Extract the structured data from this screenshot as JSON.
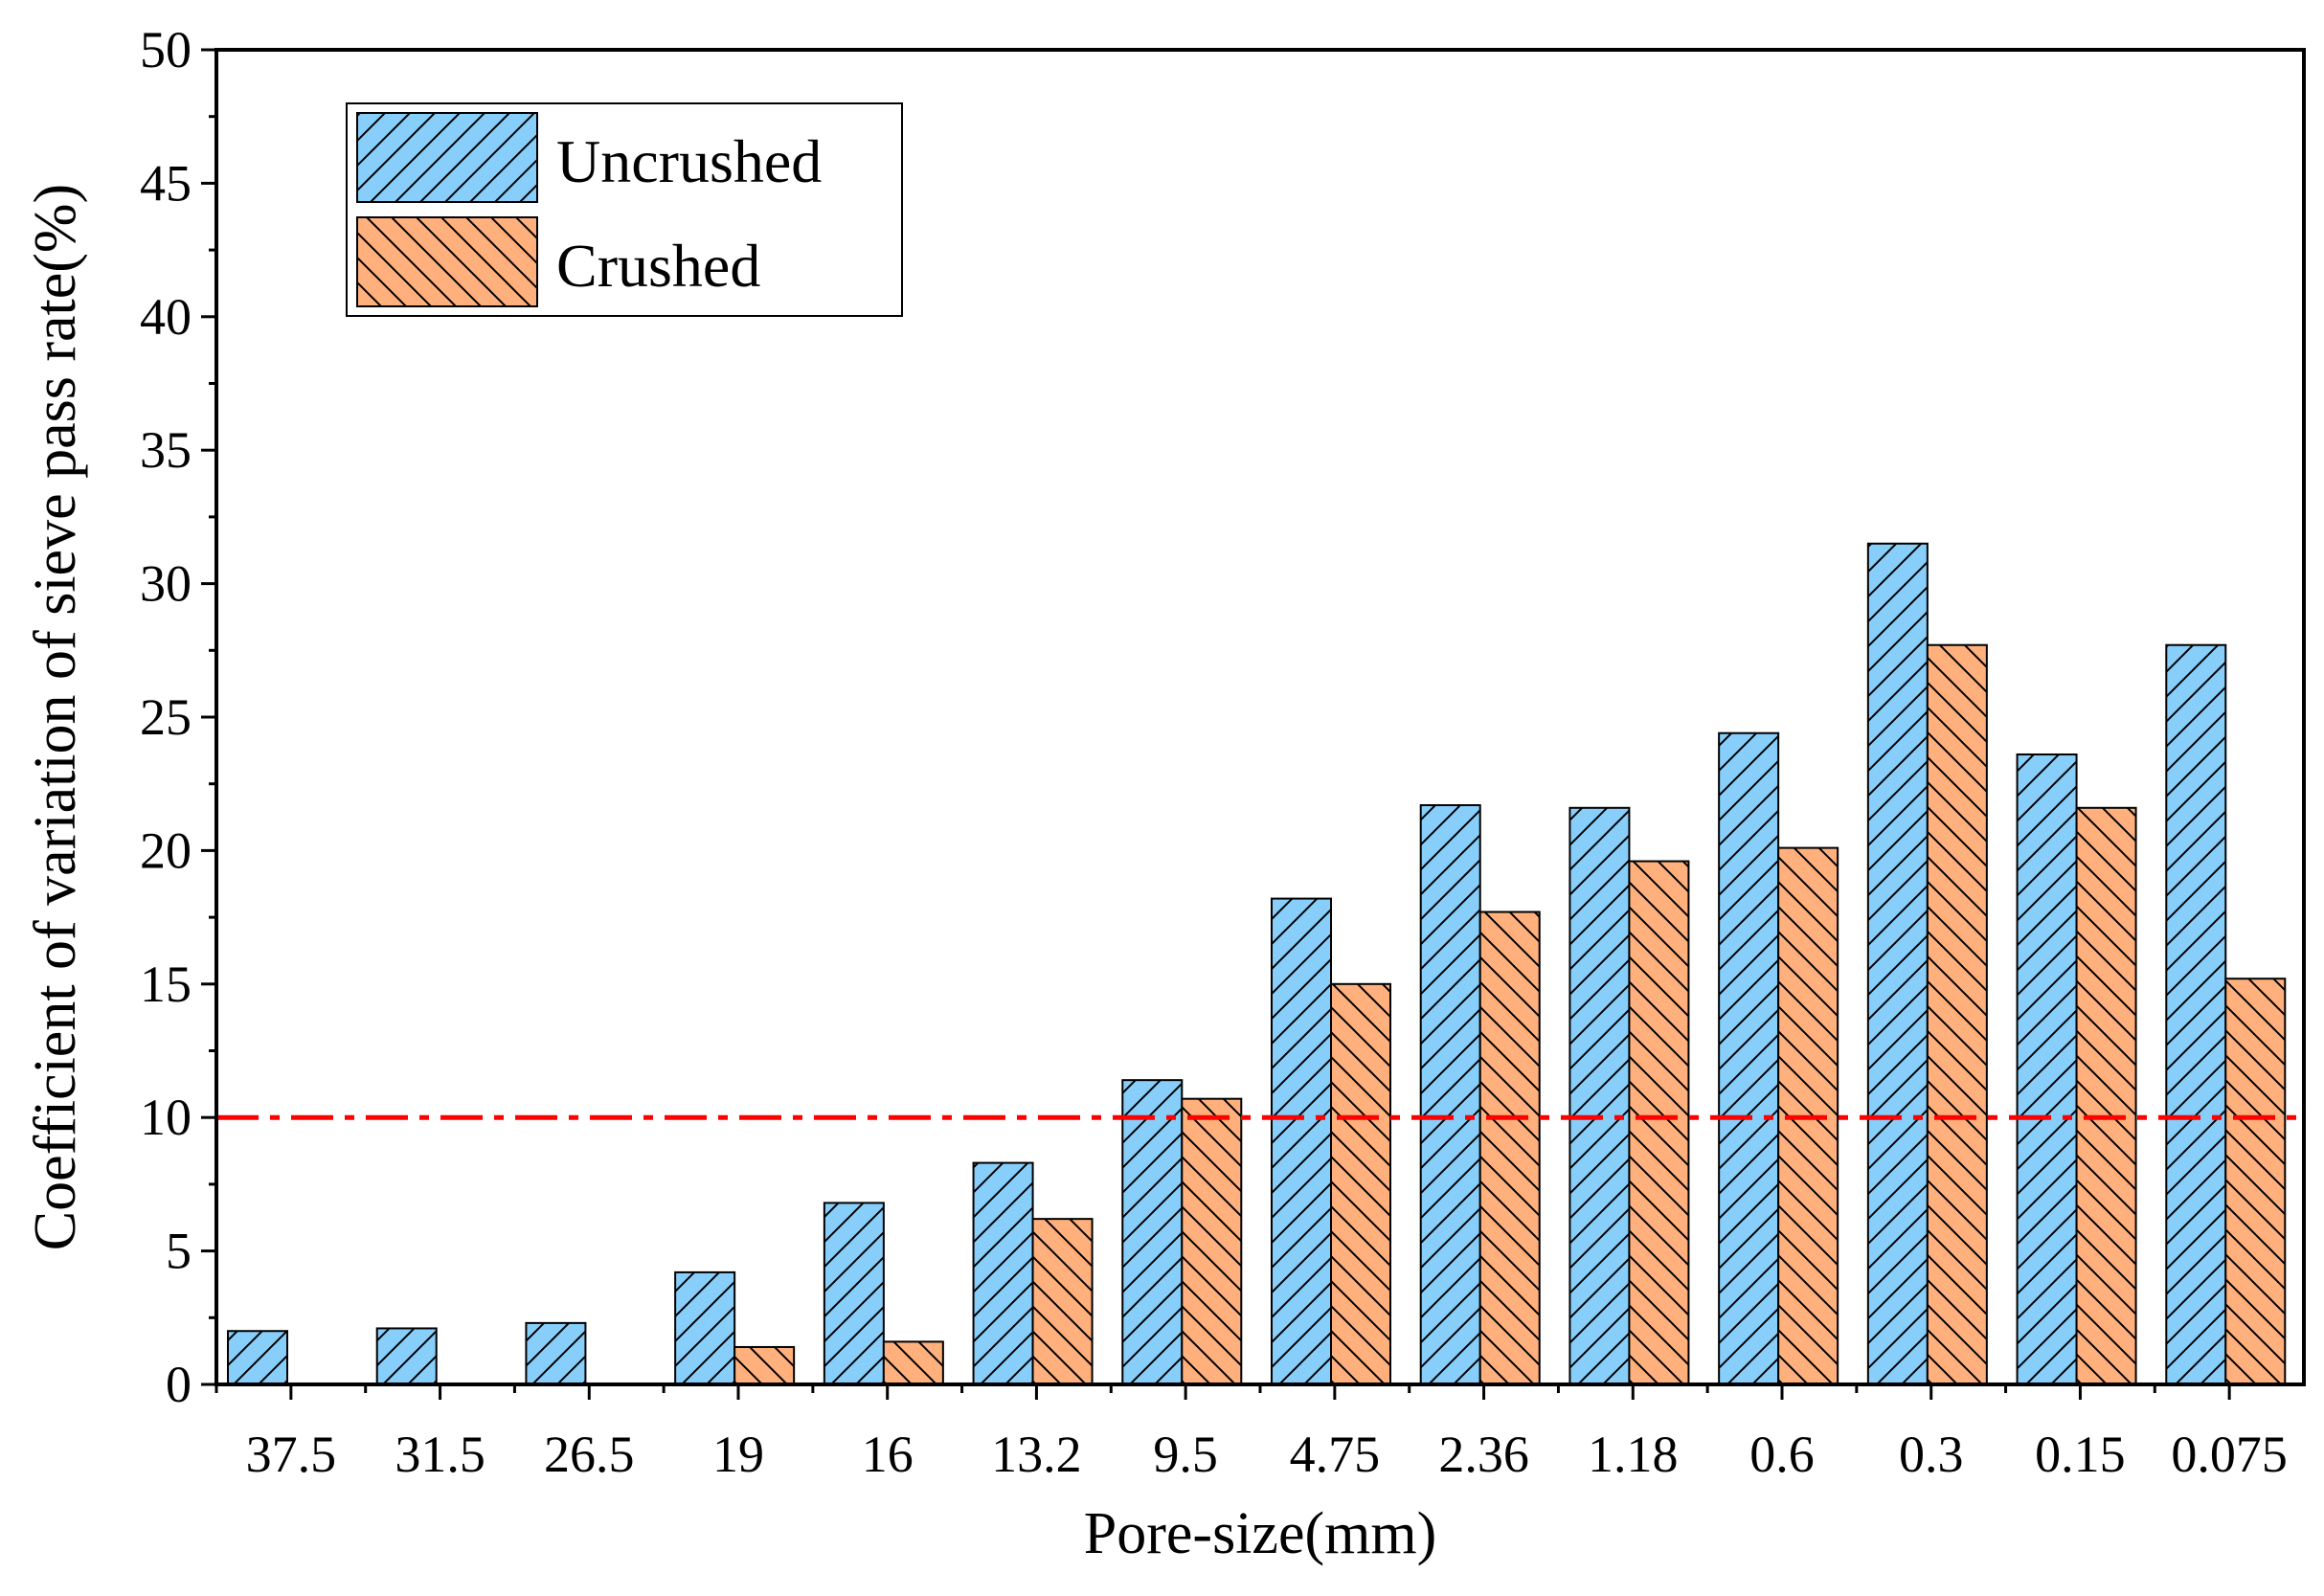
{
  "chart_data": {
    "type": "bar",
    "title": "",
    "xlabel": "Pore-size(mm)",
    "ylabel": "Coefficient of variation of sieve pass rate(%)",
    "categories": [
      "37.5",
      "31.5",
      "26.5",
      "19",
      "16",
      "13.2",
      "9.5",
      "4.75",
      "2.36",
      "1.18",
      "0.6",
      "0.3",
      "0.15",
      "0.075"
    ],
    "series": [
      {
        "name": "Uncrushed",
        "color": "#87CEFA",
        "hatch": "forward-diagonal",
        "values": [
          2.0,
          2.1,
          2.3,
          4.2,
          6.8,
          8.3,
          11.4,
          18.2,
          21.7,
          21.6,
          24.4,
          31.5,
          23.6,
          27.7
        ]
      },
      {
        "name": "Crushed",
        "color": "#FFB07C",
        "hatch": "back-diagonal",
        "values": [
          0,
          0,
          0,
          1.4,
          1.6,
          6.2,
          10.7,
          15.0,
          17.7,
          19.6,
          20.1,
          27.7,
          21.6,
          15.2
        ]
      }
    ],
    "ylim": [
      0,
      50
    ],
    "yticks": [
      "0",
      "5",
      "10",
      "15",
      "20",
      "25",
      "30",
      "35",
      "40",
      "45",
      "50"
    ],
    "reference_line": {
      "y": 10,
      "color": "#FF0000",
      "style": "dash-dot"
    },
    "legend_position": "top-left",
    "grid": false
  }
}
